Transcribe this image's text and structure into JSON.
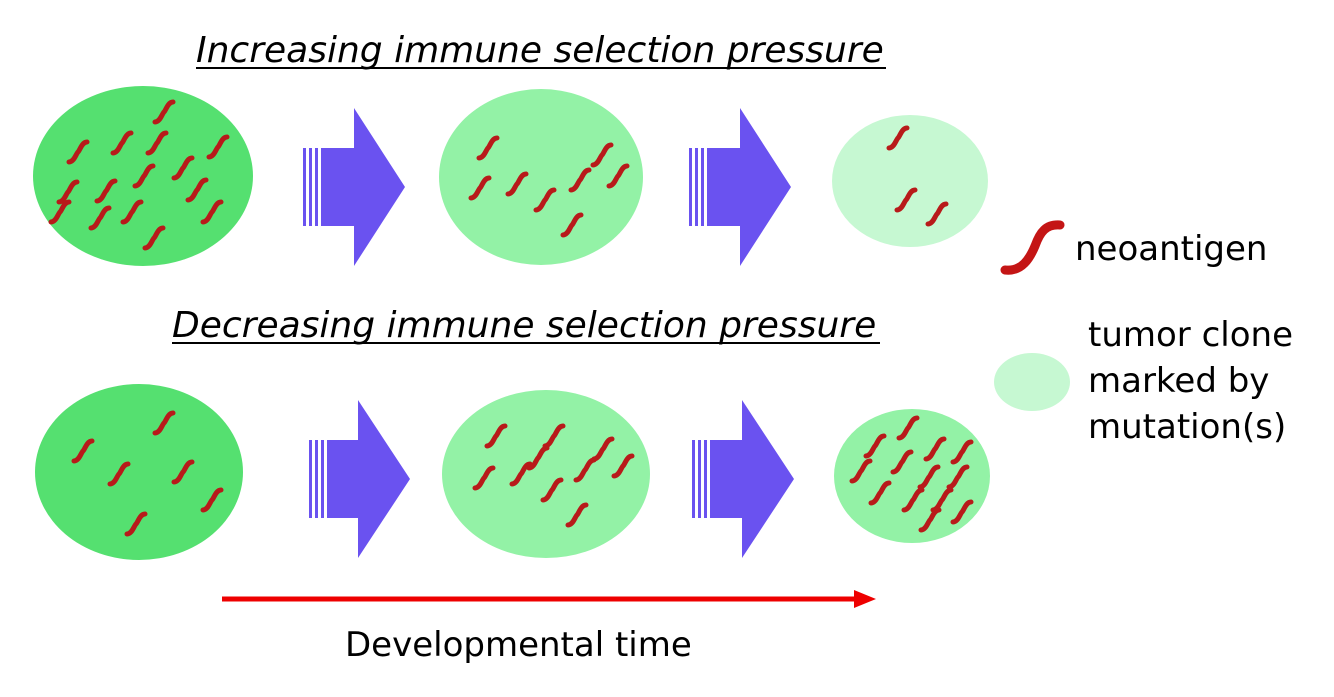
{
  "titles": {
    "increasing": "Increasing immune selection pressure",
    "decreasing": "Decreasing immune selection pressure"
  },
  "legend": {
    "neoantigen_label": "neoantigen",
    "clone_label_line1": "tumor clone",
    "clone_label_line2": "marked by",
    "clone_label_line3": "mutation(s)"
  },
  "timeline": {
    "label": "Developmental time"
  },
  "colors": {
    "clone_dark": "#55e070",
    "clone_medium": "#93f2a6",
    "clone_light": "#c6f8d2",
    "neoantigen": "#b81a1a",
    "arrow": "#6a52f0",
    "timeline_arrow": "#ee0000"
  },
  "rows": {
    "increasing": {
      "stages": [
        {
          "clone_shade": "dark",
          "neoantigen_count": 15
        },
        {
          "clone_shade": "medium",
          "neoantigen_count": 8
        },
        {
          "clone_shade": "light",
          "neoantigen_count": 3
        }
      ]
    },
    "decreasing": {
      "stages": [
        {
          "clone_shade": "dark",
          "neoantigen_count": 6
        },
        {
          "clone_shade": "medium",
          "neoantigen_count": 10
        },
        {
          "clone_shade": "medium",
          "neoantigen_count": 13
        }
      ]
    }
  }
}
